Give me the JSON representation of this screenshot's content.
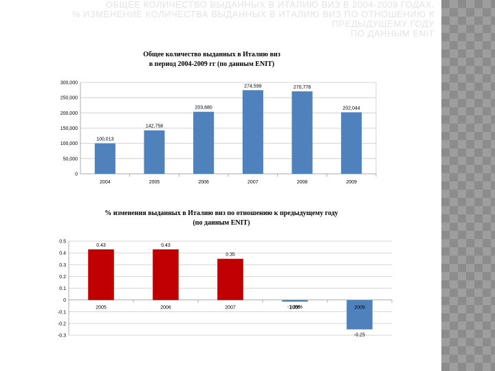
{
  "slide": {
    "title_lines": [
      "ОБЩЕЕ КОЛИЧЕСТВО ВЫДАННЫХ В ИТАЛИЮ ВИЗ В 2004-2009 ГОДАХ.",
      "% ИЗМЕНЕНИЕ КОЛИЧЕСТВА ВЫДАННЫХ В ИТАЛИЮ ВИЗ ПО ОТНОШЕНИЮ К",
      "ПРЕДЫДУЩЕМУ ГОДУ",
      "ПО ДАННЫМ ENIT"
    ]
  },
  "chart_data": [
    {
      "type": "bar",
      "title": [
        "Общее количество выданных в Италию виз",
        "в период 2004-2009 гг (по данным ENIT)"
      ],
      "categories": [
        "2004",
        "2005",
        "2006",
        "2007",
        "2008",
        "2009"
      ],
      "values": [
        100013,
        142758,
        203680,
        274599,
        270778,
        202044
      ],
      "value_labels": [
        "100,013",
        "142,758",
        "203,680",
        "274,599",
        "270,778",
        "202,044"
      ],
      "ylim": [
        0,
        300000
      ],
      "yticks": [
        0,
        50000,
        100000,
        150000,
        200000,
        250000,
        300000
      ],
      "ytick_labels": [
        "0",
        "50,000",
        "100,000",
        "150,000",
        "200,000",
        "250,000",
        "300,000"
      ],
      "grid": true,
      "bar_color": "#4f81bd"
    },
    {
      "type": "bar",
      "title": [
        "% изменения выданных в Италию виз по отношению к предыдущему году",
        "(по данным ENIT)"
      ],
      "categories": [
        "2005",
        "2006",
        "2007",
        "2008",
        "2009"
      ],
      "values": [
        0.43,
        0.43,
        0.35,
        -0.0139,
        -0.25
      ],
      "value_labels": [
        "0.43",
        "0.43",
        "0.35",
        "-1.39%",
        "-0.25"
      ],
      "ylim": [
        -0.3,
        0.5
      ],
      "yticks": [
        -0.3,
        -0.2,
        -0.1,
        0,
        0.1,
        0.2,
        0.3,
        0.4,
        0.5
      ],
      "ytick_labels": [
        "-0.3",
        "-0.2",
        "-0.1",
        "0",
        "0.1",
        "0.2",
        "0.3",
        "0.4",
        "0.5"
      ],
      "grid": true,
      "bar_colors": [
        "#c00000",
        "#c00000",
        "#c00000",
        "#4f81bd",
        "#4f81bd"
      ]
    }
  ]
}
